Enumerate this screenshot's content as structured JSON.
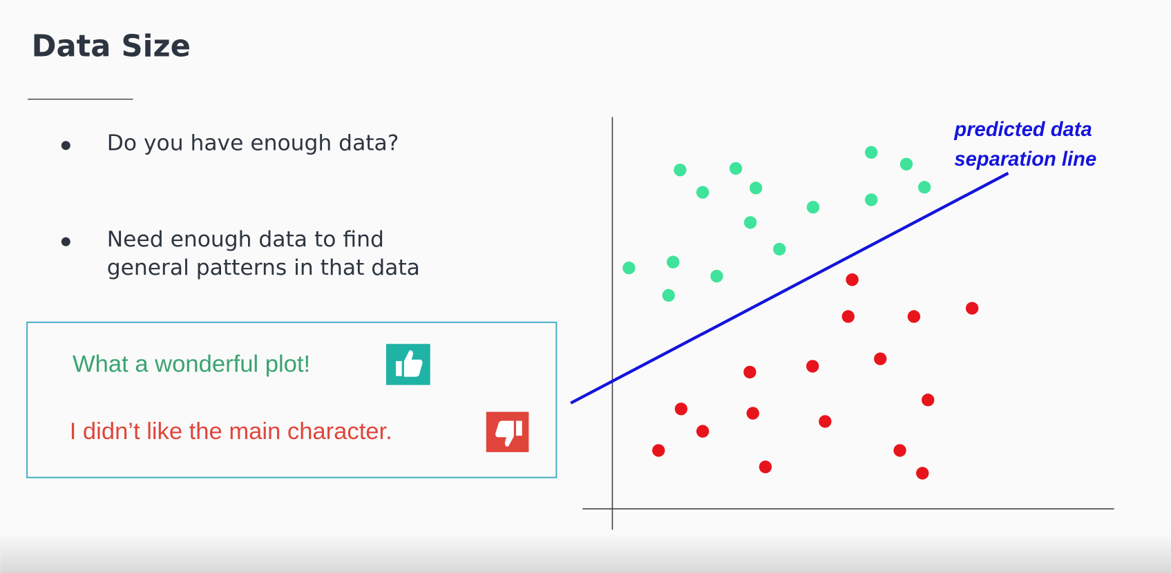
{
  "slide": {
    "title": "Data Size",
    "bullets": [
      [
        "Do you have enough data?"
      ],
      [
        "Need enough data to find",
        "general patterns in that data"
      ]
    ],
    "reviews": [
      "What a wonderful plot!",
      "I didn’t like the main character."
    ]
  },
  "chart_data": {
    "type": "scatter",
    "xlim": [
      0,
      100
    ],
    "ylim": [
      0,
      100
    ],
    "series": [
      {
        "color": "#3fe39b",
        "x": [
          13.5,
          24.6,
          18.0,
          28.6,
          27.5,
          40.0,
          51.6,
          58.6,
          62.2,
          51.6,
          33.3,
          3.3,
          12.1,
          20.8,
          11.2
        ],
        "values": [
          86.5,
          86.9,
          80.8,
          81.9,
          73.1,
          77.0,
          91.0,
          88.0,
          82.1,
          78.9,
          66.3,
          61.5,
          63.0,
          59.4,
          54.5
        ]
      },
      {
        "color": "#e8141c",
        "x": [
          47.8,
          47.0,
          60.1,
          71.7,
          53.4,
          39.9,
          27.4,
          13.7,
          28.0,
          42.4,
          62.9,
          18.0,
          9.2,
          57.3,
          30.5,
          61.8
        ],
        "values": [
          58.5,
          49.1,
          49.1,
          51.2,
          38.3,
          36.4,
          34.9,
          25.5,
          24.4,
          22.3,
          27.8,
          19.8,
          14.9,
          14.9,
          10.7,
          9.1
        ]
      }
    ],
    "annotation": {
      "text": [
        "predicted data",
        "separation line"
      ],
      "color": "#1414dc",
      "x": [
        -8.3,
        78.9
      ],
      "values": [
        27.0,
        85.7
      ]
    }
  }
}
